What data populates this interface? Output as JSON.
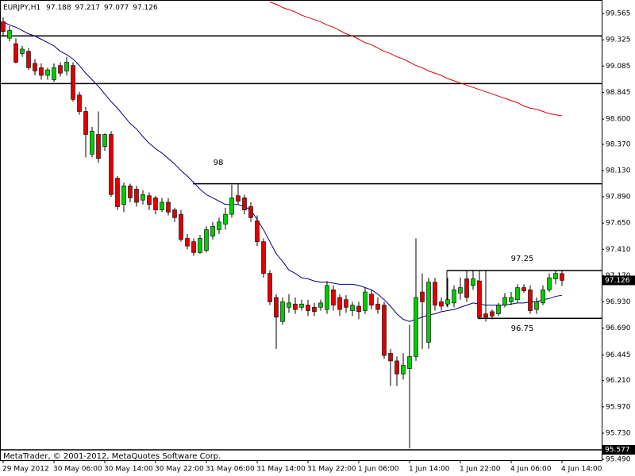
{
  "chart_data": {
    "type": "candlestick",
    "title": "EURJPY,H1",
    "footer": "MetaTrader, © 2001-2012, MetaQuotes Software Corp.",
    "up_color": "#00cc00",
    "down_color": "#dd0000",
    "categories": [
      "29 May 2012",
      null,
      null,
      null,
      null,
      null,
      null,
      null,
      "30 May 06:00",
      null,
      null,
      null,
      null,
      null,
      null,
      null,
      "30 May 14:00",
      null,
      null,
      null,
      null,
      null,
      null,
      null,
      "30 May 22:00",
      null,
      null,
      null,
      null,
      null,
      null,
      null,
      "31 May 06:00",
      null,
      null,
      null,
      null,
      null,
      null,
      null,
      "31 May 14:00",
      null,
      null,
      null,
      null,
      null,
      null,
      null,
      "31 May 22:00",
      null,
      null,
      null,
      null,
      null,
      null,
      null,
      "1 Jun 06:00",
      null,
      null,
      null,
      null,
      null,
      null,
      null,
      "1 Jun 14:00",
      null,
      null,
      null,
      null,
      null,
      null,
      null,
      "1 Jun 22:00",
      null,
      null,
      null,
      null,
      null,
      null,
      null,
      "4 Jun 06:00",
      null,
      null,
      null,
      null,
      null,
      null,
      null,
      "4 Jun 14:00"
    ],
    "ohlc": {
      "open": [
        99.49,
        99.34,
        99.29,
        99.2,
        99.22,
        99.11,
        99.07,
        99.0,
        98.96,
        99.09,
        99.04,
        99.09,
        98.82,
        98.67,
        98.28,
        98.46,
        98.35,
        98.46,
        98.06,
        97.82,
        97.99,
        97.96,
        97.86,
        97.9,
        97.88,
        97.77,
        97.84,
        97.77,
        97.73,
        97.51,
        97.48,
        97.38,
        97.4,
        97.53,
        97.59,
        97.64,
        97.73,
        97.9,
        97.88,
        97.8,
        97.67,
        97.48,
        97.19,
        96.97,
        96.75,
        96.88,
        96.91,
        96.88,
        96.9,
        96.88,
        96.88,
        96.86,
        97.04,
        96.97,
        96.95,
        96.85,
        96.89,
        96.85,
        97.0,
        96.91,
        96.9,
        96.46,
        96.39,
        96.27,
        96.32,
        96.43,
        97.02,
        96.56,
        97.11,
        96.93,
        96.91,
        96.92,
        97.01,
        97.14,
        97.08,
        97.12,
        96.82,
        96.84,
        96.82,
        96.9,
        96.93,
        96.95,
        97.06,
        97.04,
        96.86,
        96.92,
        97.04,
        97.14,
        97.188
      ],
      "high": [
        99.53,
        99.45,
        99.34,
        99.27,
        99.25,
        99.15,
        99.11,
        99.07,
        99.11,
        99.12,
        99.17,
        99.12,
        98.85,
        98.71,
        98.53,
        98.67,
        98.47,
        98.49,
        98.08,
        98.02,
        98.01,
        97.99,
        97.95,
        97.93,
        97.9,
        97.88,
        97.88,
        97.79,
        97.77,
        97.55,
        97.51,
        97.54,
        97.62,
        97.66,
        97.7,
        97.79,
        98.0,
        98.01,
        97.91,
        97.84,
        97.72,
        97.51,
        97.22,
        97.0,
        96.97,
        97.0,
        96.97,
        96.95,
        96.95,
        96.92,
        96.95,
        97.12,
        97.08,
        97.0,
        96.99,
        96.93,
        96.93,
        97.06,
        97.04,
        96.97,
        96.93,
        96.5,
        96.43,
        96.46,
        96.72,
        97.51,
        97.19,
        97.15,
        97.15,
        96.97,
        97.15,
        97.08,
        97.15,
        97.22,
        97.22,
        97.22,
        97.22,
        96.86,
        96.92,
        97.01,
        97.02,
        97.09,
        97.09,
        97.08,
        96.97,
        97.08,
        97.19,
        97.22,
        97.217
      ],
      "low": [
        99.36,
        99.31,
        99.11,
        99.17,
        99.05,
        99.0,
        98.96,
        98.96,
        98.94,
        98.99,
        99.0,
        98.76,
        98.64,
        98.25,
        98.25,
        98.2,
        98.31,
        97.89,
        97.77,
        97.75,
        97.84,
        97.8,
        97.82,
        97.77,
        97.73,
        97.75,
        97.72,
        97.66,
        97.48,
        97.41,
        97.35,
        97.37,
        97.38,
        97.5,
        97.55,
        97.59,
        97.7,
        97.82,
        97.73,
        97.66,
        97.44,
        97.15,
        96.9,
        96.5,
        96.72,
        96.83,
        96.82,
        96.85,
        96.8,
        96.8,
        96.85,
        96.82,
        96.85,
        96.8,
        96.83,
        96.8,
        96.77,
        96.82,
        96.86,
        96.82,
        96.41,
        96.16,
        96.16,
        96.22,
        95.59,
        96.39,
        96.5,
        96.5,
        96.85,
        96.85,
        96.88,
        96.88,
        96.95,
        96.93,
        97.04,
        96.77,
        96.75,
        96.77,
        96.8,
        96.88,
        96.9,
        96.92,
        97.01,
        96.82,
        96.82,
        96.9,
        97.02,
        97.09,
        97.077
      ],
      "close": [
        99.4,
        99.41,
        99.12,
        99.24,
        99.07,
        99.04,
        99.0,
        99.05,
        99.07,
        99.02,
        99.12,
        98.78,
        98.67,
        98.46,
        98.49,
        98.24,
        98.46,
        97.91,
        97.8,
        97.99,
        97.88,
        97.84,
        97.91,
        97.82,
        97.77,
        97.84,
        97.75,
        97.7,
        97.5,
        97.44,
        97.38,
        97.51,
        97.59,
        97.62,
        97.66,
        97.73,
        97.88,
        97.85,
        97.77,
        97.7,
        97.48,
        97.19,
        96.93,
        96.79,
        96.93,
        96.92,
        96.86,
        96.91,
        96.85,
        96.84,
        96.92,
        97.08,
        96.9,
        96.86,
        96.88,
        96.9,
        96.84,
        97.02,
        96.9,
        96.86,
        96.44,
        96.39,
        96.27,
        96.35,
        96.43,
        96.97,
        96.93,
        97.11,
        96.9,
        96.89,
        96.95,
        97.04,
        97.06,
        96.97,
        97.14,
        96.79,
        96.79,
        96.8,
        96.9,
        96.97,
        96.97,
        97.06,
        97.03,
        96.85,
        96.93,
        97.04,
        97.15,
        97.19,
        97.126
      ]
    },
    "series": [
      {
        "color": "#000080",
        "values": [
          99.49,
          99.46,
          99.44,
          99.41,
          99.38,
          99.36,
          99.33,
          99.3,
          99.27,
          99.22,
          99.19,
          99.15,
          99.09,
          99.02,
          98.96,
          98.9,
          98.83,
          98.76,
          98.7,
          98.63,
          98.56,
          98.51,
          98.44,
          98.38,
          98.33,
          98.29,
          98.24,
          98.19,
          98.13,
          98.08,
          98.02,
          97.96,
          97.91,
          97.88,
          97.85,
          97.82,
          97.82,
          97.82,
          97.8,
          97.77,
          97.68,
          97.59,
          97.48,
          97.37,
          97.3,
          97.22,
          97.19,
          97.15,
          97.14,
          97.12,
          97.11,
          97.11,
          97.1,
          97.09,
          97.09,
          97.09,
          97.08,
          97.06,
          97.04,
          97.0,
          96.95,
          96.89,
          96.82,
          96.77,
          96.75,
          96.77,
          96.79,
          96.81,
          96.82,
          96.84,
          96.85,
          96.86,
          96.88,
          96.9,
          96.92,
          96.91,
          96.9,
          96.9,
          96.9,
          96.9,
          96.91,
          96.92,
          96.92,
          96.93,
          96.93,
          96.95,
          96.96,
          96.98,
          96.99
        ]
      },
      {
        "color": "#dd0000",
        "values": [
          null,
          null,
          null,
          null,
          null,
          null,
          null,
          null,
          null,
          null,
          null,
          null,
          null,
          null,
          null,
          null,
          null,
          null,
          null,
          null,
          null,
          null,
          null,
          null,
          null,
          null,
          null,
          null,
          null,
          null,
          null,
          null,
          null,
          null,
          null,
          null,
          null,
          null,
          null,
          null,
          null,
          null,
          99.67,
          99.65,
          99.62,
          99.6,
          99.58,
          99.55,
          99.53,
          99.51,
          99.49,
          99.46,
          99.44,
          99.41,
          99.38,
          99.36,
          99.33,
          99.3,
          99.28,
          99.25,
          99.22,
          99.2,
          99.17,
          99.15,
          99.12,
          99.09,
          99.07,
          99.04,
          99.02,
          99.0,
          98.97,
          98.95,
          98.93,
          98.91,
          98.89,
          98.87,
          98.85,
          98.83,
          98.81,
          98.79,
          98.77,
          98.75,
          98.72,
          98.7,
          98.69,
          98.67,
          98.65,
          98.64,
          98.63
        ]
      }
    ],
    "levels": [
      {
        "value": 99.361
      },
      {
        "value": 98.925
      },
      {
        "value": 98.009
      },
      {
        "value": 97.216
      },
      {
        "value": 96.779
      },
      {
        "value": 95.577
      }
    ],
    "annotations": [
      {
        "text": "98"
      },
      {
        "text": "97.25"
      },
      {
        "text": "96.75"
      }
    ],
    "ylim": [
      95.483,
      99.689
    ],
    "yticks": [
      99.565,
      99.325,
      99.085,
      98.845,
      {
        "value": 98.6,
        "label": "98.600"
      },
      {
        "value": 98.37,
        "label": "98.370"
      },
      {
        "value": 98.13,
        "label": "98.130"
      },
      {
        "value": 97.89,
        "label": "97.890"
      },
      {
        "value": 97.65,
        "label": "97.650"
      },
      {
        "value": 97.41,
        "label": "97.410"
      },
      {
        "value": 97.17,
        "label": "97.170"
      },
      {
        "value": 96.93,
        "label": "96.930"
      },
      {
        "value": 96.69,
        "label": "96.690"
      },
      96.445,
      {
        "value": 96.21,
        "label": "96.210"
      },
      {
        "value": 95.97,
        "label": "95.970"
      },
      {
        "value": 95.73,
        "label": "95.730"
      },
      {
        "value": 95.49,
        "label": "95.490"
      }
    ],
    "grid": false
  }
}
